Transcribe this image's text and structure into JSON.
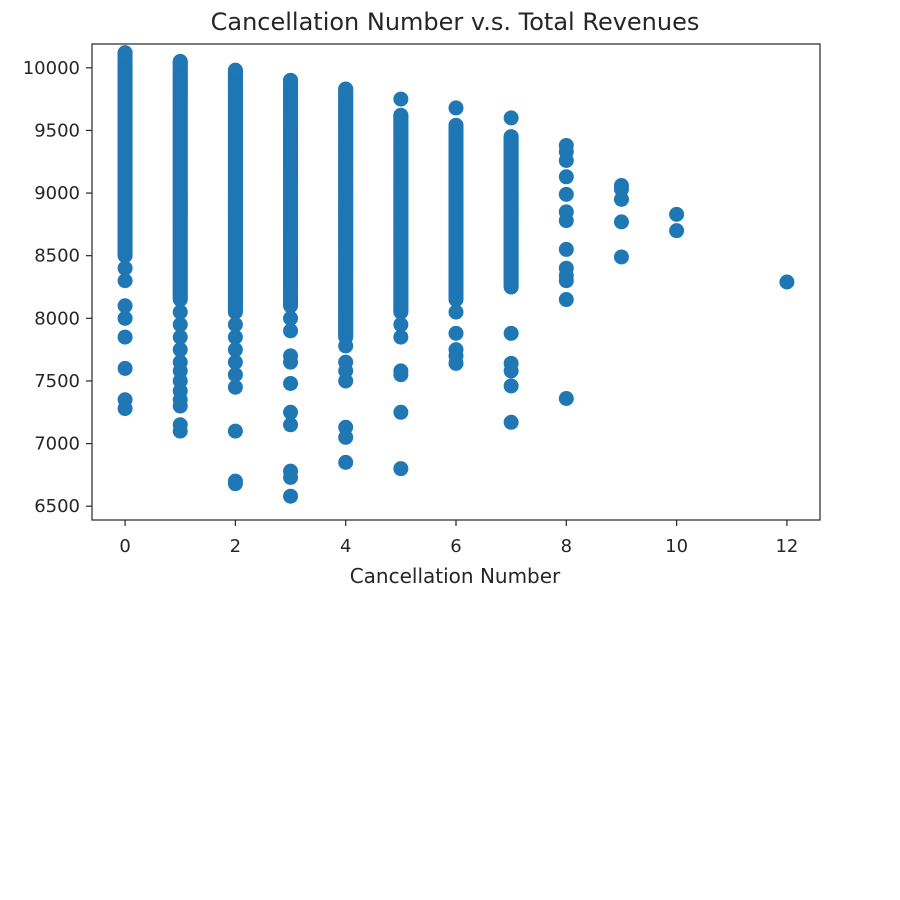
{
  "chart_data": {
    "type": "scatter",
    "title": "Cancellation Number v.s. Total Revenues",
    "xlabel": "Cancellation Number",
    "ylabel": "",
    "xlim": [
      -0.6,
      12.6
    ],
    "ylim": [
      6390,
      10190
    ],
    "xticks": [
      0,
      2,
      4,
      6,
      8,
      10,
      12
    ],
    "yticks": [
      6500,
      7000,
      7500,
      8000,
      8500,
      9000,
      9500,
      10000
    ],
    "grid": false,
    "marker_color": "#1f77b4",
    "series": [
      {
        "x": 0,
        "ranges": [
          [
            8500,
            10120
          ]
        ],
        "points": [
          8400,
          8300,
          8100,
          8000,
          7850,
          7600,
          7350,
          7280
        ]
      },
      {
        "x": 1,
        "ranges": [
          [
            8150,
            10050
          ]
        ],
        "points": [
          8050,
          7950,
          7850,
          7750,
          7650,
          7580,
          7500,
          7420,
          7350,
          7300,
          7150,
          7100
        ]
      },
      {
        "x": 2,
        "ranges": [
          [
            8050,
            9980
          ]
        ],
        "points": [
          7950,
          7850,
          7750,
          7650,
          7550,
          7450,
          7100,
          6700,
          6680
        ]
      },
      {
        "x": 3,
        "ranges": [
          [
            8100,
            9900
          ]
        ],
        "points": [
          8000,
          7900,
          7700,
          7650,
          7480,
          7250,
          7150,
          6780,
          6730,
          6580
        ]
      },
      {
        "x": 4,
        "ranges": [
          [
            7850,
            9830
          ]
        ],
        "points": [
          7780,
          7650,
          7580,
          7500,
          7130,
          7050,
          6850
        ]
      },
      {
        "x": 5,
        "ranges": [
          [
            8050,
            9620
          ]
        ],
        "points": [
          9750,
          7950,
          7850,
          7580,
          7550,
          7250,
          6800
        ]
      },
      {
        "x": 6,
        "ranges": [
          [
            8150,
            9540
          ]
        ],
        "points": [
          9680,
          8050,
          7880,
          7750,
          7700,
          7640
        ]
      },
      {
        "x": 7,
        "ranges": [
          [
            8250,
            9450
          ]
        ],
        "points": [
          9600,
          7880,
          7640,
          7580,
          7460,
          7170
        ]
      },
      {
        "x": 8,
        "ranges": [],
        "points": [
          9380,
          9330,
          9260,
          9130,
          8990,
          8850,
          8780,
          8550,
          8400,
          8340,
          8300,
          8150,
          7360
        ]
      },
      {
        "x": 9,
        "ranges": [],
        "points": [
          9060,
          9030,
          8950,
          8770,
          8490
        ]
      },
      {
        "x": 10,
        "ranges": [],
        "points": [
          8830,
          8700
        ]
      },
      {
        "x": 12,
        "ranges": [],
        "points": [
          8290
        ]
      }
    ]
  }
}
